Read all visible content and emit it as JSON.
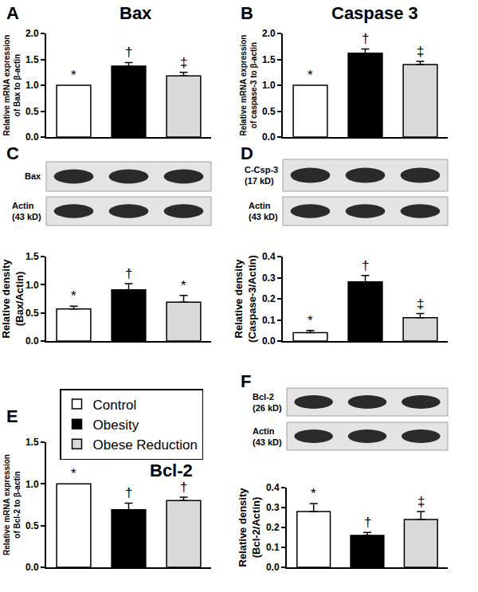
{
  "chart_data": [
    {
      "panel": "A",
      "type": "bar",
      "title": "Bax",
      "y_label": [
        "Relative mRNA expression",
        "of Bax to β-actin"
      ],
      "categories": [
        "Control",
        "Obesity",
        "Obese Reduction"
      ],
      "values": [
        1.0,
        1.37,
        1.18
      ],
      "errors": [
        0,
        0.07,
        0.07
      ],
      "significance": [
        "*",
        "†",
        "‡"
      ],
      "colors": [
        "#ffffff",
        "#000000",
        "#d9d9d9"
      ],
      "ylim": [
        0,
        2
      ],
      "yticks": [
        {
          "value": 0,
          "label": "0.0"
        },
        0.5,
        {
          "value": 1,
          "label": "1.0"
        },
        1.5,
        {
          "value": 2,
          "label": "2.0"
        }
      ],
      "tick_labels": "y"
    },
    {
      "panel": "B",
      "type": "bar",
      "title": "Caspase 3",
      "y_label": [
        "Relative mRNA expression",
        "of caspase-3 to β-actin"
      ],
      "categories": [
        "Control",
        "Obesity",
        "Obese Reduction"
      ],
      "values": [
        1.0,
        1.62,
        1.4
      ],
      "errors": [
        0,
        0.08,
        0.06
      ],
      "significance": [
        "*",
        "†",
        "‡"
      ],
      "colors": [
        "#ffffff",
        "#000000",
        "#d9d9d9"
      ],
      "ylim": [
        0,
        2
      ],
      "yticks": [
        {
          "value": 0,
          "label": "0.0"
        },
        0.5,
        {
          "value": 1,
          "label": "1.0"
        },
        1.5,
        {
          "value": 2,
          "label": "2.0"
        }
      ],
      "tick_labels": "y"
    },
    {
      "panel": "C",
      "type": "bar",
      "y_label": [
        "Relative density",
        "(Bax/Actin)"
      ],
      "blot": {
        "rows": [
          {
            "label": [
              "Bax"
            ]
          },
          {
            "label": [
              "Actin",
              "(43 kD)"
            ]
          }
        ]
      },
      "categories": [
        "Control",
        "Obesity",
        "Obese Reduction"
      ],
      "values": [
        0.57,
        0.91,
        0.69
      ],
      "errors": [
        0.05,
        0.11,
        0.12
      ],
      "significance": [
        "*",
        "†",
        "*"
      ],
      "colors": [
        "#ffffff",
        "#000000",
        "#d9d9d9"
      ],
      "ylim": [
        0,
        1.5
      ],
      "yticks": [
        {
          "value": 0,
          "label": "0.0"
        },
        0.5,
        {
          "value": 1,
          "label": "1.0"
        },
        1.5
      ],
      "tick_labels": "y"
    },
    {
      "panel": "D",
      "type": "bar",
      "y_label": [
        "Relative density",
        "(Caspase-3/Actin)"
      ],
      "blot": {
        "rows": [
          {
            "label": [
              "C-Csp-3",
              "(17 kD)"
            ]
          },
          {
            "label": [
              "Actin",
              "(43 kD)"
            ]
          }
        ]
      },
      "categories": [
        "Control",
        "Obesity",
        "Obese Reduction"
      ],
      "values": [
        0.04,
        0.28,
        0.11
      ],
      "errors": [
        0.01,
        0.03,
        0.02
      ],
      "significance": [
        "*",
        "†",
        "‡"
      ],
      "colors": [
        "#ffffff",
        "#000000",
        "#d9d9d9"
      ],
      "ylim": [
        0,
        0.4
      ],
      "yticks": [
        {
          "value": 0,
          "label": "0.0"
        },
        0.1,
        0.2,
        0.3,
        0.4
      ],
      "tick_labels": "y"
    },
    {
      "panel": "E",
      "type": "bar",
      "title": "Bcl-2",
      "y_label": [
        "Relative mRNA expression",
        "of Bcl-2 to β-actin"
      ],
      "categories": [
        "Control",
        "Obesity",
        "Obese Reduction"
      ],
      "values": [
        1.0,
        0.69,
        0.8
      ],
      "errors": [
        0,
        0.08,
        0.04
      ],
      "significance": [
        "*",
        "†",
        "†"
      ],
      "colors": [
        "#ffffff",
        "#000000",
        "#d9d9d9"
      ],
      "ylim": [
        0,
        1.5
      ],
      "yticks": [
        {
          "value": 0,
          "label": "0.0"
        },
        0.5,
        {
          "value": 1,
          "label": "1.0"
        },
        1.5
      ],
      "tick_labels": "y",
      "legend": "upper left"
    },
    {
      "panel": "F",
      "type": "bar",
      "y_label": [
        "Relative density",
        "(Bcl-2/Actin)"
      ],
      "blot": {
        "rows": [
          {
            "label": [
              "Bcl-2",
              "(26 kD)"
            ]
          },
          {
            "label": [
              "Actin",
              "(43 kD)"
            ]
          }
        ]
      },
      "categories": [
        "Control",
        "Obesity",
        "Obese Reduction"
      ],
      "values": [
        0.28,
        0.16,
        0.24
      ],
      "errors": [
        0.04,
        0.015,
        0.04
      ],
      "significance": [
        "*",
        "†",
        "‡"
      ],
      "colors": [
        "#ffffff",
        "#000000",
        "#d9d9d9"
      ],
      "ylim": [
        0,
        0.4
      ],
      "yticks": [
        {
          "value": 0,
          "label": "0.0"
        },
        0.1,
        0.2,
        0.3,
        0.4
      ],
      "tick_labels": "y"
    }
  ]
}
